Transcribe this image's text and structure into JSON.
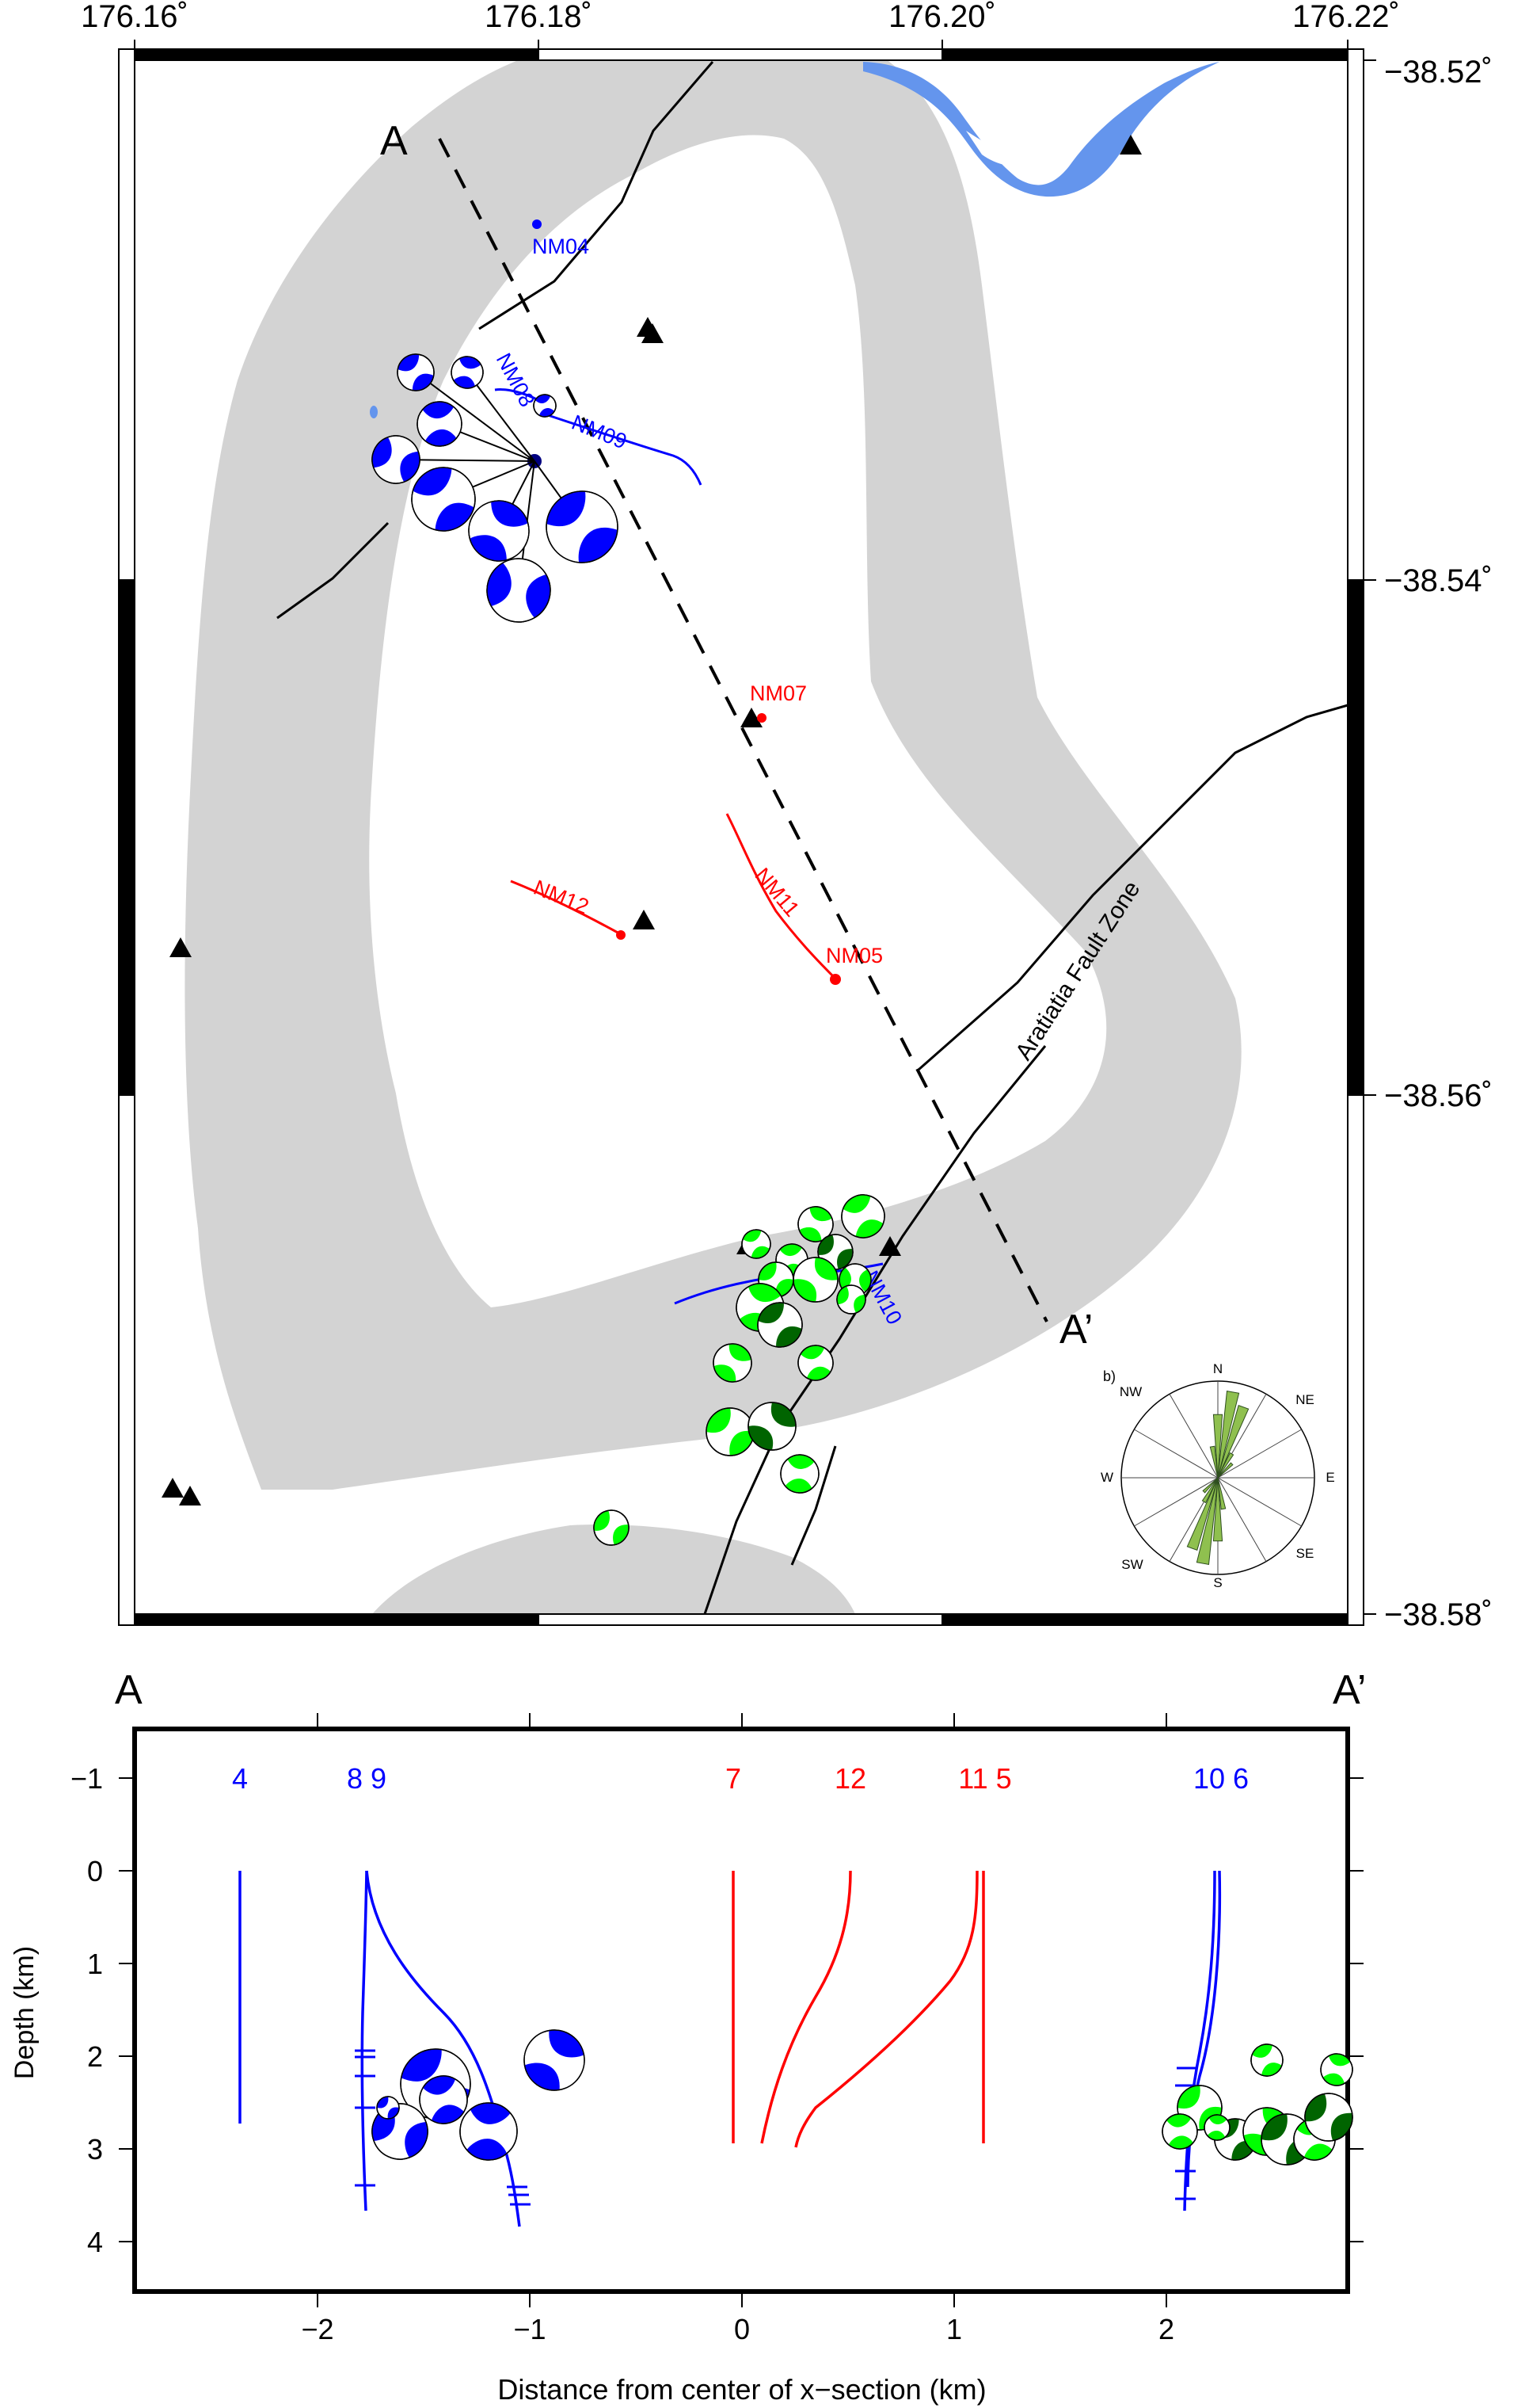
{
  "map": {
    "lon_labels": [
      "176.16˚",
      "176.18˚",
      "176.20˚",
      "176.22˚"
    ],
    "lat_labels": [
      "−38.52˚",
      "−38.54˚",
      "−38.56˚",
      "−38.58˚"
    ],
    "section_start": "A",
    "section_end": "A’",
    "fault_label": "Aratiatia Fault Zone",
    "wells_blue": [
      "NM04",
      "NM08",
      "NM09",
      "NM10"
    ],
    "wells_red": [
      "NM07",
      "NM12",
      "NM11",
      "NM05"
    ],
    "colors": {
      "resistivity_band": "#d3d3d3",
      "river": "#6495ed",
      "blue_wells": "#0000ff",
      "red_wells": "#ff0000",
      "green_mechanisms": "#00ff00",
      "dark_green_mechanisms": "#006400"
    },
    "rose": {
      "panel_label": "b)",
      "directions": [
        "N",
        "NE",
        "E",
        "SE",
        "S",
        "SW",
        "W",
        "NW"
      ],
      "fill_color": "#8fc04f"
    }
  },
  "section": {
    "label_left": "A",
    "label_right": "A’",
    "xlabel": "Distance from center of x−section (km)",
    "ylabel": "Depth (km)",
    "x_ticks": [
      "−2",
      "−1",
      "0",
      "1",
      "2"
    ],
    "y_ticks": [
      "−1",
      "0",
      "1",
      "2",
      "3",
      "4"
    ],
    "well_numbers_blue": [
      "4",
      "8 9",
      "10 6"
    ],
    "well_numbers_red": [
      "7",
      "12",
      "11 5"
    ]
  }
}
